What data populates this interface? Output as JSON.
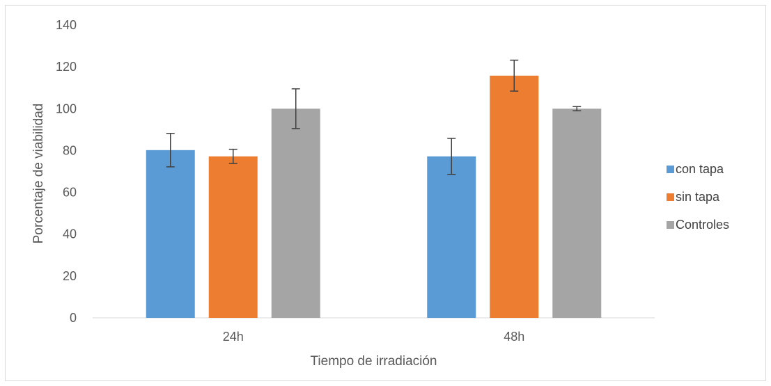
{
  "chart_data": {
    "type": "bar",
    "title": "",
    "xlabel": "Tiempo de irradiación",
    "ylabel": "Porcentaje de viabilidad",
    "categories": [
      "24h",
      "48h"
    ],
    "ylim": [
      0,
      140
    ],
    "yticks": [
      0,
      20,
      40,
      60,
      80,
      100,
      120,
      140
    ],
    "grid": false,
    "legend_position": "right",
    "series": [
      {
        "name": "con tapa",
        "color": "#5b9bd5",
        "values": [
          80.2,
          77.2
        ],
        "errors": [
          8.0,
          8.6
        ]
      },
      {
        "name": "sin tapa",
        "color": "#ed7d31",
        "values": [
          77.2,
          115.8
        ],
        "errors": [
          3.4,
          7.4
        ]
      },
      {
        "name": "Controles",
        "color": "#a5a5a5",
        "values": [
          100,
          100
        ],
        "errors": [
          9.5,
          1.0
        ]
      }
    ]
  }
}
